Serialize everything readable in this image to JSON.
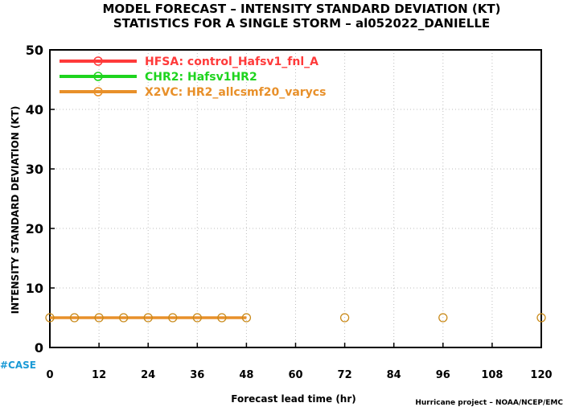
{
  "chart_data": {
    "type": "line",
    "title": "MODEL FORECAST – INTENSITY STANDARD DEVIATION (KT)",
    "subtitle": "STATISTICS FOR A SINGLE STORM – al052022_DANIELLE",
    "xlabel": "Forecast lead time (hr)",
    "ylabel": "INTENSITY STANDARD DEVIATION (KT)",
    "xlim": [
      0,
      120
    ],
    "ylim": [
      0,
      50
    ],
    "x_ticks": [
      "0",
      "12",
      "24",
      "36",
      "48",
      "60",
      "72",
      "84",
      "96",
      "108",
      "120"
    ],
    "y_ticks": [
      "0",
      "10",
      "20",
      "30",
      "40",
      "50"
    ],
    "grid": true,
    "legend_position": "top-left",
    "series": [
      {
        "name": "HFSA: control_Hafsv1_fnl_A",
        "color": "#ff3a3a",
        "x": [],
        "y": []
      },
      {
        "name": "CHR2: Hafsv1HR2",
        "color": "#1ed41e",
        "x": [],
        "y": []
      },
      {
        "name": "X2VC: HR2_allcsmf20_varycs",
        "color": "#e8902a",
        "x": [
          0,
          6,
          12,
          18,
          24,
          30,
          36,
          42,
          48,
          72,
          96,
          120
        ],
        "y": [
          5,
          5,
          5,
          5,
          5,
          5,
          5,
          5,
          5,
          5,
          5,
          5
        ]
      }
    ]
  },
  "footer": {
    "case_label": "#CASE",
    "credit": "Hurricane project – NOAA/NCEP/EMC"
  },
  "colors": {
    "case": "#1a9ad6",
    "grid": "#bdbdbd"
  }
}
